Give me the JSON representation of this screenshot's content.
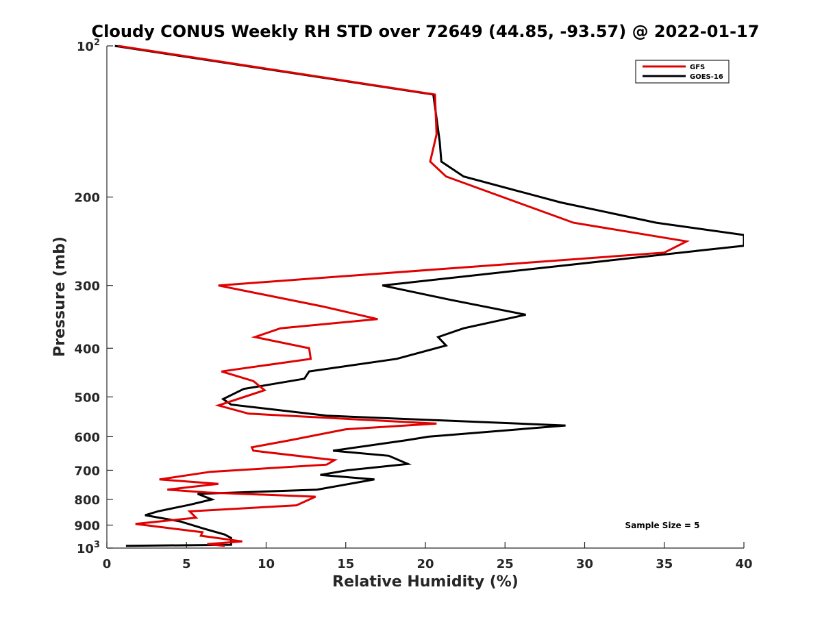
{
  "chart_data": {
    "type": "line",
    "title": "Cloudy CONUS Weekly RH STD over 72649 (44.85, -93.57) @ 2022-01-17",
    "xlabel": "Relative Humidity (%)",
    "ylabel": "Pressure (mb)",
    "xlim": [
      0,
      40
    ],
    "ylim": [
      100,
      1000
    ],
    "y_scale": "log",
    "y_reversed": true,
    "grid": false,
    "legend_position": "top-right",
    "x_ticks": [
      "0",
      "5",
      "10",
      "15",
      "20",
      "25",
      "30",
      "35",
      "40"
    ],
    "y_ticks": [
      {
        "value": 100,
        "label": "10",
        "sup": "2"
      },
      {
        "value": 200,
        "label": "200",
        "sup": ""
      },
      {
        "value": 300,
        "label": "300",
        "sup": ""
      },
      {
        "value": 400,
        "label": "400",
        "sup": ""
      },
      {
        "value": 500,
        "label": "500",
        "sup": ""
      },
      {
        "value": 600,
        "label": "600",
        "sup": ""
      },
      {
        "value": 700,
        "label": "700",
        "sup": ""
      },
      {
        "value": 800,
        "label": "800",
        "sup": ""
      },
      {
        "value": 900,
        "label": "900",
        "sup": ""
      },
      {
        "value": 1000,
        "label": "10",
        "sup": "3"
      }
    ],
    "annotation": "Sample Size = 5",
    "series": [
      {
        "name": "GFS",
        "color": "#e00000",
        "points": [
          [
            0.7,
            100
          ],
          [
            20.6,
            125
          ],
          [
            20.7,
            150
          ],
          [
            20.3,
            170
          ],
          [
            21.3,
            182
          ],
          [
            29.3,
            225
          ],
          [
            36.4,
            245
          ],
          [
            35.0,
            258
          ],
          [
            7.0,
            300
          ],
          [
            13.5,
            330
          ],
          [
            17.0,
            350
          ],
          [
            10.9,
            365
          ],
          [
            9.3,
            380
          ],
          [
            12.7,
            400
          ],
          [
            12.8,
            420
          ],
          [
            7.2,
            445
          ],
          [
            9.2,
            465
          ],
          [
            9.9,
            485
          ],
          [
            7.0,
            520
          ],
          [
            8.9,
            540
          ],
          [
            20.7,
            565
          ],
          [
            15.0,
            580
          ],
          [
            11.5,
            610
          ],
          [
            9.1,
            630
          ],
          [
            9.2,
            640
          ],
          [
            14.3,
            668
          ],
          [
            13.8,
            682
          ],
          [
            6.5,
            705
          ],
          [
            3.3,
            730
          ],
          [
            7.0,
            745
          ],
          [
            3.8,
            765
          ],
          [
            6.3,
            775
          ],
          [
            13.1,
            790
          ],
          [
            11.9,
            822
          ],
          [
            5.2,
            845
          ],
          [
            5.6,
            870
          ],
          [
            1.8,
            895
          ],
          [
            6.0,
            930
          ],
          [
            5.9,
            945
          ],
          [
            8.5,
            970
          ],
          [
            6.3,
            982
          ],
          [
            7.4,
            990
          ]
        ]
      },
      {
        "name": "GOES-16",
        "color": "#000000",
        "points": [
          [
            0.5,
            100
          ],
          [
            20.5,
            125
          ],
          [
            20.9,
            155
          ],
          [
            21.0,
            170
          ],
          [
            22.4,
            182
          ],
          [
            28.5,
            205
          ],
          [
            34.5,
            225
          ],
          [
            40.0,
            238
          ],
          [
            40.0,
            250
          ],
          [
            37.5,
            255
          ],
          [
            17.3,
            300
          ],
          [
            21.5,
            320
          ],
          [
            26.3,
            343
          ],
          [
            22.4,
            365
          ],
          [
            20.8,
            380
          ],
          [
            21.3,
            395
          ],
          [
            18.2,
            420
          ],
          [
            12.7,
            445
          ],
          [
            12.4,
            460
          ],
          [
            8.6,
            482
          ],
          [
            7.3,
            505
          ],
          [
            7.8,
            518
          ],
          [
            13.8,
            545
          ],
          [
            28.8,
            570
          ],
          [
            20.2,
            600
          ],
          [
            18.8,
            610
          ],
          [
            14.2,
            640
          ],
          [
            17.7,
            655
          ],
          [
            18.9,
            680
          ],
          [
            15.1,
            700
          ],
          [
            13.4,
            715
          ],
          [
            16.8,
            730
          ],
          [
            13.2,
            765
          ],
          [
            5.7,
            780
          ],
          [
            6.6,
            800
          ],
          [
            5.2,
            820
          ],
          [
            3.2,
            845
          ],
          [
            2.4,
            860
          ],
          [
            4.6,
            885
          ],
          [
            6.1,
            915
          ],
          [
            7.4,
            940
          ],
          [
            7.8,
            955
          ],
          [
            7.8,
            985
          ],
          [
            1.2,
            990
          ]
        ]
      }
    ]
  }
}
